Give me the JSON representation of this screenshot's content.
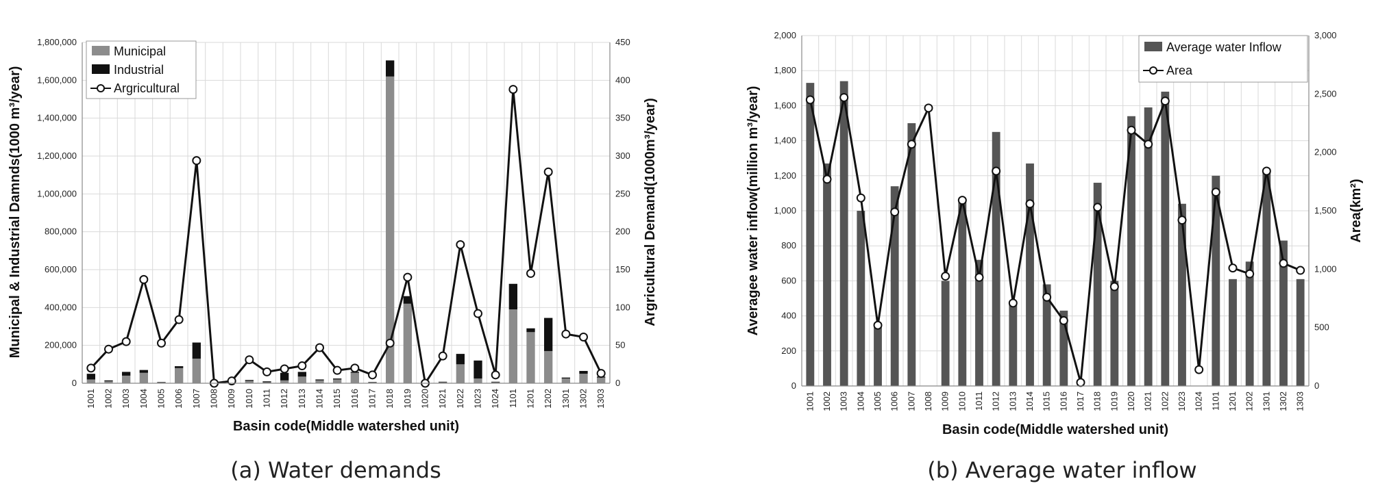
{
  "chart_data": [
    {
      "type": "bar",
      "caption": "(a) Water demands",
      "xlabel": "Basin code(Middle watershed unit)",
      "ylabel": "Municipal & Industrial Damnds(1000 m³/year)",
      "y2label": "Argricultural Demand(1000m³/year)",
      "ylim": [
        0,
        1800000
      ],
      "y2lim": [
        0,
        450
      ],
      "ytick_labels": [
        "0",
        "200,000",
        "400,000",
        "600,000",
        "800,000",
        "1,000,000",
        "1,200,000",
        "1,400,000",
        "1,600,000",
        "1,800,000"
      ],
      "y2tick_labels": [
        "0",
        "50",
        "100",
        "150",
        "200",
        "250",
        "300",
        "350",
        "400",
        "450"
      ],
      "grid": true,
      "legend_position": "top-left",
      "categories": [
        "1001",
        "1002",
        "1003",
        "1004",
        "1005",
        "1006",
        "1007",
        "1008",
        "1009",
        "1010",
        "1011",
        "1012",
        "1013",
        "1014",
        "1015",
        "1016",
        "1017",
        "1018",
        "1019",
        "1020",
        "1021",
        "1022",
        "1023",
        "1024",
        "1101",
        "1201",
        "1202",
        "1301",
        "1302",
        "1303"
      ],
      "series": [
        {
          "name": "Municipal",
          "kind": "bar-stacked",
          "axis": "left",
          "color": "#8c8c8c",
          "values": [
            20000,
            10000,
            40000,
            55000,
            5000,
            80000,
            130000,
            0,
            0,
            12000,
            5000,
            15000,
            35000,
            15000,
            20000,
            55000,
            5000,
            1620000,
            420000,
            0,
            5000,
            100000,
            25000,
            5000,
            390000,
            270000,
            170000,
            25000,
            50000,
            30000
          ]
        },
        {
          "name": "Industrial",
          "kind": "bar-stacked",
          "axis": "left",
          "color": "#111111",
          "values": [
            30000,
            5000,
            20000,
            15000,
            2000,
            10000,
            85000,
            0,
            0,
            5000,
            5000,
            40000,
            25000,
            5000,
            5000,
            5000,
            2000,
            85000,
            40000,
            0,
            3000,
            55000,
            95000,
            3000,
            135000,
            20000,
            175000,
            5000,
            15000,
            5000
          ]
        },
        {
          "name": "Argricultural",
          "kind": "line",
          "axis": "right",
          "color": "#111111",
          "values": [
            20,
            45,
            55,
            137,
            53,
            84,
            294,
            0,
            3,
            31,
            15,
            19,
            23,
            47,
            17,
            20,
            11,
            53,
            140,
            0,
            36,
            183,
            92,
            11,
            388,
            145,
            279,
            65,
            61,
            13
          ]
        }
      ]
    },
    {
      "type": "bar",
      "caption": "(b) Average water inflow",
      "xlabel": "Basin code(Middle watershed unit)",
      "ylabel": "Averagee water inflow(million m³/year)",
      "y2label": "Area(km²)",
      "ylim": [
        0,
        2000
      ],
      "y2lim": [
        0,
        3000
      ],
      "ytick_labels": [
        "0",
        "200",
        "400",
        "600",
        "800",
        "1,000",
        "1,200",
        "1,400",
        "1,600",
        "1,800",
        "2,000"
      ],
      "y2tick_labels": [
        "0",
        "500",
        "1,000",
        "1,500",
        "2,000",
        "2,500",
        "3,000"
      ],
      "grid": true,
      "legend_position": "top-right",
      "categories": [
        "1001",
        "1002",
        "1003",
        "1004",
        "1005",
        "1006",
        "1007",
        "1008",
        "1009",
        "1010",
        "1011",
        "1012",
        "1013",
        "1014",
        "1015",
        "1016",
        "1017",
        "1018",
        "1019",
        "1020",
        "1021",
        "1022",
        "1023",
        "1024",
        "1101",
        "1201",
        "1202",
        "1301",
        "1302",
        "1303"
      ],
      "series": [
        {
          "name": "Average water Inflow",
          "kind": "bar",
          "axis": "left",
          "color": "#555555",
          "values": [
            1730,
            1270,
            1740,
            1000,
            360,
            1140,
            1500,
            0,
            600,
            1050,
            720,
            1450,
            480,
            1270,
            580,
            430,
            0,
            1160,
            600,
            1540,
            1590,
            1680,
            1040,
            0,
            1200,
            610,
            710,
            1230,
            830,
            610
          ]
        },
        {
          "name": "Area",
          "kind": "line",
          "axis": "right",
          "color": "#111111",
          "values": [
            2450,
            1770,
            2470,
            1610,
            520,
            1490,
            2070,
            2380,
            940,
            1590,
            930,
            1840,
            710,
            1560,
            760,
            560,
            30,
            1530,
            850,
            2190,
            2070,
            2440,
            1420,
            140,
            1660,
            1010,
            960,
            1840,
            1050,
            990
          ]
        }
      ]
    }
  ]
}
